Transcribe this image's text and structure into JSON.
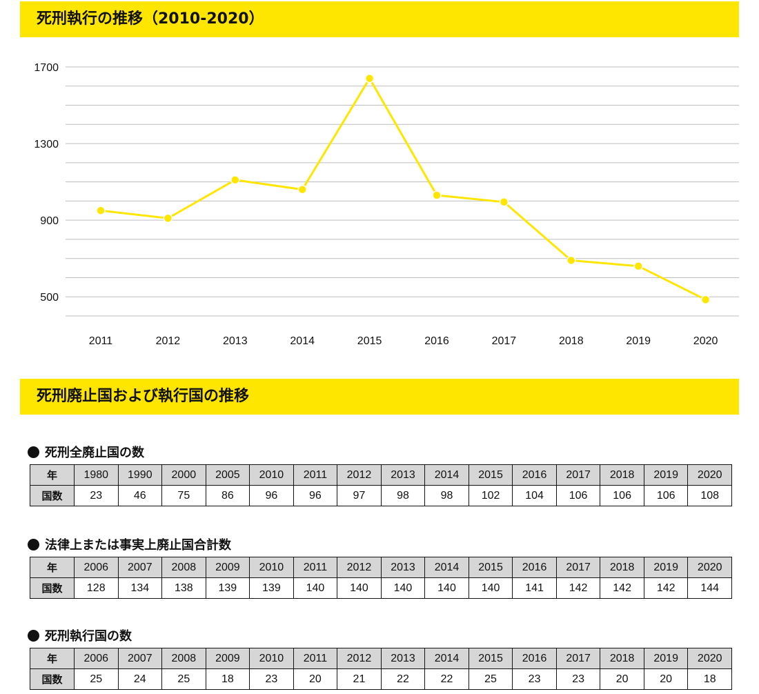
{
  "banner1": "死刑執行の推移（2010-2020）",
  "banner2": "死刑廃止国および執行国の推移",
  "chart_data": {
    "type": "line",
    "title": "死刑執行の推移（2010-2020）",
    "x": [
      "2011",
      "2012",
      "2013",
      "2014",
      "2015",
      "2016",
      "2017",
      "2018",
      "2019",
      "2020"
    ],
    "y": [
      950,
      910,
      1110,
      1060,
      1640,
      1030,
      995,
      690,
      660,
      485
    ],
    "ylim": [
      400,
      1700
    ],
    "yticks": [
      "500",
      "900",
      "1300",
      "1700"
    ],
    "grid": true,
    "color": "#ffe600"
  },
  "tables": [
    {
      "title": "死刑全廃止国の数",
      "header_label": "年",
      "row_label": "国数",
      "years": [
        "1980",
        "1990",
        "2000",
        "2005",
        "2010",
        "2011",
        "2012",
        "2013",
        "2014",
        "2015",
        "2016",
        "2017",
        "2018",
        "2019",
        "2020"
      ],
      "values": [
        "23",
        "46",
        "75",
        "86",
        "96",
        "96",
        "97",
        "98",
        "98",
        "102",
        "104",
        "106",
        "106",
        "106",
        "108"
      ]
    },
    {
      "title": "法律上または事実上廃止国合計数",
      "header_label": "年",
      "row_label": "国数",
      "years": [
        "2006",
        "2007",
        "2008",
        "2009",
        "2010",
        "2011",
        "2012",
        "2013",
        "2014",
        "2015",
        "2016",
        "2017",
        "2018",
        "2019",
        "2020"
      ],
      "values": [
        "128",
        "134",
        "138",
        "139",
        "139",
        "140",
        "140",
        "140",
        "140",
        "140",
        "141",
        "142",
        "142",
        "142",
        "144"
      ]
    },
    {
      "title": "死刑執行国の数",
      "header_label": "年",
      "row_label": "国数",
      "years": [
        "2006",
        "2007",
        "2008",
        "2009",
        "2010",
        "2011",
        "2012",
        "2013",
        "2014",
        "2015",
        "2016",
        "2017",
        "2018",
        "2019",
        "2020"
      ],
      "values": [
        "25",
        "24",
        "25",
        "18",
        "23",
        "20",
        "21",
        "22",
        "22",
        "25",
        "23",
        "23",
        "20",
        "20",
        "18"
      ]
    }
  ]
}
